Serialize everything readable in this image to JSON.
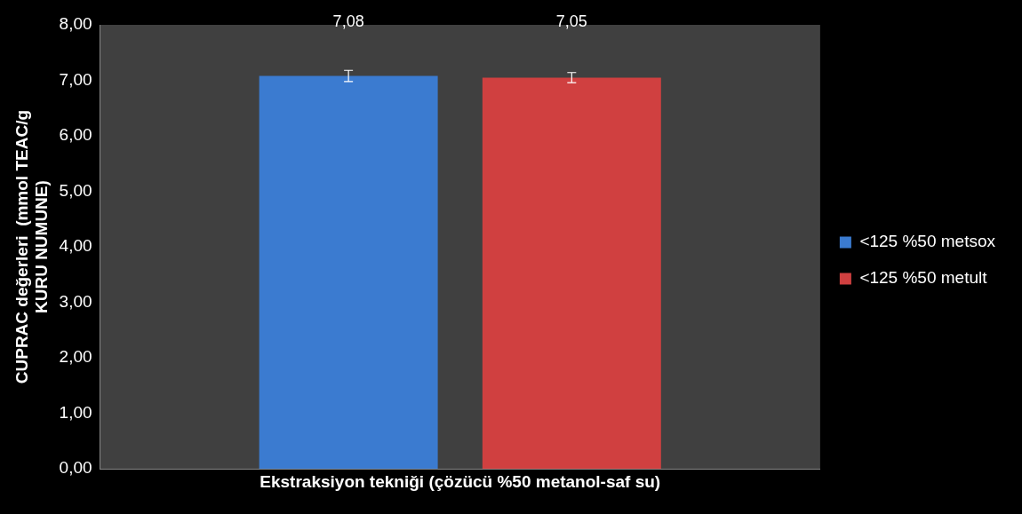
{
  "chart_data": {
    "type": "bar",
    "xlabel": "Ekstraksiyon tekniği (çözücü %50 metanol-saf su)",
    "ylabel": "CUPRAC değerleri  (mmol TEAC/g KURU NUMUNE)",
    "categories": [
      null
    ],
    "series": [
      {
        "name": "<125 %50 metsox",
        "color": "#3b7bd0",
        "values": [
          7.08
        ],
        "errors": [
          0.1
        ],
        "value_labels": [
          "7,08"
        ]
      },
      {
        "name": "<125 %50 metult",
        "color": "#d04040",
        "values": [
          7.05
        ],
        "errors": [
          0.09
        ],
        "value_labels": [
          "7,05"
        ]
      }
    ],
    "ylim": [
      0,
      8
    ],
    "yticks": [
      {
        "value": 0,
        "label": "0,00"
      },
      {
        "value": 1,
        "label": "1,00"
      },
      {
        "value": 2,
        "label": "2,00"
      },
      {
        "value": 3,
        "label": "3,00"
      },
      {
        "value": 4,
        "label": "4,00"
      },
      {
        "value": 5,
        "label": "5,00"
      },
      {
        "value": 6,
        "label": "6,00"
      },
      {
        "value": 7,
        "label": "7,00"
      },
      {
        "value": 8,
        "label": "8,00"
      }
    ],
    "legend": "right"
  }
}
